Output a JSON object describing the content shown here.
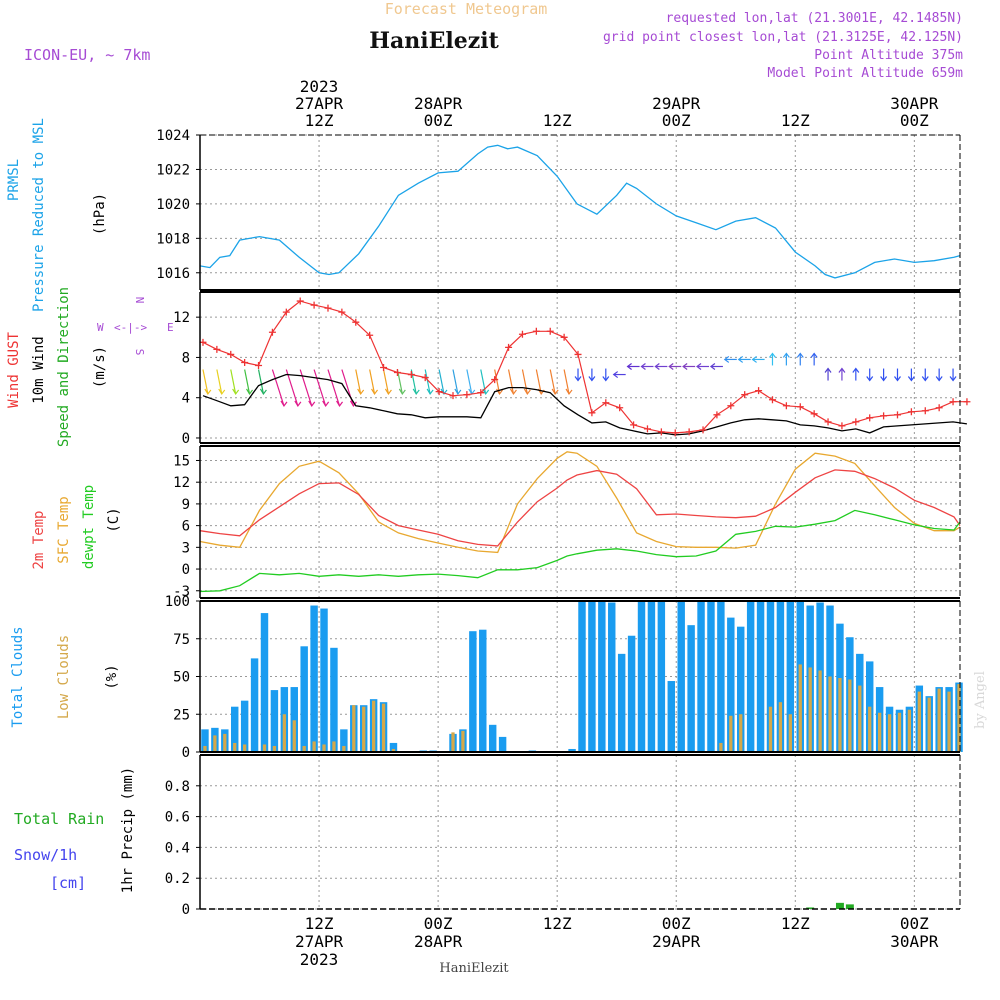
{
  "header": {
    "overlay_title": "Forecast Meteogram",
    "station": "HaniElezit",
    "model": "ICON-EU, ~ 7km",
    "requested": "requested lon,lat (21.3001E, 42.1485N)",
    "grid_point": "grid point closest lon,lat (21.3125E, 42.125N)",
    "point_alt": "Point Altitude 375m",
    "model_alt": "Model Point Altitude 659m",
    "footer_station": "HaniElezit",
    "watermark": "by Angel"
  },
  "time_axis": {
    "top_labels": [
      {
        "h": 12,
        "lines": [
          "2023",
          "27APR",
          "12Z"
        ]
      },
      {
        "h": 24,
        "lines": [
          "28APR",
          "00Z"
        ]
      },
      {
        "h": 36,
        "lines": [
          "12Z"
        ]
      },
      {
        "h": 48,
        "lines": [
          "29APR",
          "00Z"
        ]
      },
      {
        "h": 60,
        "lines": [
          "12Z"
        ]
      },
      {
        "h": 72,
        "lines": [
          "30APR",
          "00Z"
        ]
      }
    ],
    "bottom_labels": [
      {
        "h": 12,
        "lines": [
          "12Z",
          "27APR",
          "2023"
        ]
      },
      {
        "h": 24,
        "lines": [
          "00Z",
          "28APR"
        ]
      },
      {
        "h": 36,
        "lines": [
          "12Z"
        ]
      },
      {
        "h": 48,
        "lines": [
          "00Z",
          "29APR"
        ]
      },
      {
        "h": 60,
        "lines": [
          "12Z"
        ]
      },
      {
        "h": 72,
        "lines": [
          "00Z",
          "30APR"
        ]
      }
    ],
    "range_hours": [
      0,
      76.6
    ]
  },
  "panel_labels": {
    "pressure": {
      "line1": "PRMSL",
      "line2": "Pressure Reduced to MSL",
      "unit": "(hPa)"
    },
    "wind": {
      "gust": "Wind GUST",
      "wind10": "10m Wind",
      "speed": "Speed and Direction",
      "unit": "(m/s)",
      "compass_w": "W",
      "compass_e": "E",
      "compass_n": "N",
      "compass_s": "S"
    },
    "temp": {
      "t2m": "2m Temp",
      "sfc": "SFC Temp",
      "dew": "dewpt Temp",
      "unit": "(C)"
    },
    "clouds": {
      "total": "Total Clouds",
      "low": "Low Clouds",
      "unit": "(%)"
    },
    "precip": {
      "rain": "Total  Rain",
      "snow": "Snow/1h",
      "snow_unit": "[cm]",
      "precip": "1hr Precip (mm)"
    }
  },
  "colors": {
    "pressure": "#1ba3e8",
    "gust": "#ee3333",
    "wind10": "#000000",
    "t2m": "#ee4444",
    "sfc": "#e8a830",
    "dew": "#22cc22",
    "total_cloud": "#1a9cf0",
    "low_cloud": "#d4a84a",
    "precip": "#22aa22",
    "purple": "#a64bd4",
    "blue_label": "#4444ee",
    "green_label": "#22aa22",
    "title_ghost": "#f0c890"
  },
  "chart_data": [
    {
      "type": "line",
      "name": "pressure",
      "ylabel": "Pressure Reduced to MSL (hPa)",
      "ylim": [
        1015,
        1024
      ],
      "yticks": [
        1016,
        1018,
        1020,
        1022,
        1024
      ],
      "x": [
        0,
        1,
        2,
        3,
        4,
        6,
        8,
        10,
        12,
        13,
        14,
        16,
        18,
        20,
        22,
        24,
        26,
        28,
        29,
        30,
        31,
        32,
        34,
        36,
        38,
        40,
        42,
        43,
        44,
        46,
        48,
        50,
        52,
        54,
        56,
        58,
        60,
        62,
        63,
        64,
        66,
        68,
        70,
        72,
        74,
        76,
        76.6
      ],
      "y": [
        1016.4,
        1016.3,
        1016.9,
        1017.0,
        1017.9,
        1018.1,
        1017.9,
        1016.9,
        1016.0,
        1015.9,
        1016.0,
        1017.1,
        1018.7,
        1020.5,
        1021.2,
        1021.8,
        1021.9,
        1022.9,
        1023.3,
        1023.4,
        1023.2,
        1023.3,
        1022.8,
        1021.6,
        1020.0,
        1019.4,
        1020.5,
        1021.2,
        1020.9,
        1020.0,
        1019.3,
        1018.9,
        1018.5,
        1019.0,
        1019.2,
        1018.6,
        1017.2,
        1016.4,
        1015.9,
        1015.7,
        1016.0,
        1016.6,
        1016.8,
        1016.6,
        1016.7,
        1016.9,
        1017.0
      ]
    },
    {
      "type": "line",
      "name": "wind",
      "ylabel": "m/s",
      "ylim": [
        -0.5,
        14.5
      ],
      "yticks": [
        0,
        4,
        8,
        12
      ],
      "gust": [
        9.5,
        8.8,
        8.3,
        7.5,
        7.2,
        10.5,
        12.5,
        13.6,
        13.2,
        12.9,
        12.5,
        11.5,
        10.2,
        7.0,
        6.5,
        6.3,
        6.0,
        4.6,
        4.2,
        4.3,
        4.5,
        5.8,
        9.0,
        10.3,
        10.6,
        10.6,
        10.0,
        8.3,
        2.5,
        3.5,
        3.0,
        1.3,
        0.9,
        0.6,
        0.5,
        0.6,
        0.8,
        2.3,
        3.2,
        4.3,
        4.7,
        3.8,
        3.2,
        3.1,
        2.4,
        1.6,
        1.2,
        1.6,
        2.0,
        2.2,
        2.3,
        2.6,
        2.7,
        3.0,
        3.6,
        3.6
      ],
      "wind10": [
        4.2,
        3.7,
        3.2,
        3.3,
        5.2,
        5.8,
        6.3,
        6.2,
        6.0,
        5.8,
        5.4,
        3.2,
        3.0,
        2.7,
        2.4,
        2.3,
        2.0,
        2.1,
        2.1,
        2.1,
        2.0,
        4.6,
        5.0,
        5.0,
        4.8,
        4.5,
        3.2,
        2.3,
        1.5,
        1.6,
        1.0,
        0.7,
        0.4,
        0.5,
        0.3,
        0.4,
        0.7,
        1.1,
        1.5,
        1.8,
        1.9,
        1.8,
        1.7,
        1.3,
        1.2,
        1.0,
        0.7,
        0.9,
        0.5,
        1.1,
        1.2,
        1.3,
        1.4,
        1.5,
        1.6,
        1.4
      ],
      "series_step_hours": 1.4,
      "arrow_count": 55
    },
    {
      "type": "line",
      "name": "temperature",
      "ylabel": "C",
      "ylim": [
        -4,
        17
      ],
      "yticks": [
        -3,
        0,
        3,
        6,
        9,
        12,
        15
      ],
      "x": [
        0,
        2,
        4,
        6,
        8,
        10,
        12,
        14,
        16,
        18,
        20,
        22,
        24,
        26,
        28,
        30,
        32,
        34,
        36,
        37,
        38,
        40,
        42,
        44,
        46,
        48,
        50,
        52,
        54,
        56,
        58,
        60,
        62,
        64,
        66,
        68,
        70,
        72,
        74,
        76,
        76.6
      ],
      "t2m": [
        5.3,
        4.9,
        4.6,
        6.8,
        8.6,
        10.4,
        11.8,
        11.9,
        10.3,
        7.4,
        6.0,
        5.4,
        4.8,
        3.9,
        3.4,
        3.2,
        6.5,
        9.3,
        11.2,
        12.3,
        13.0,
        13.6,
        13.1,
        11.1,
        7.5,
        7.6,
        7.4,
        7.2,
        7.1,
        7.3,
        8.5,
        10.6,
        12.6,
        13.7,
        13.5,
        12.5,
        11.2,
        9.5,
        8.5,
        7.2,
        6.0
      ],
      "sfc": [
        3.8,
        3.3,
        3.0,
        8.1,
        11.8,
        14.2,
        14.9,
        13.3,
        10.4,
        6.5,
        5.0,
        4.2,
        3.6,
        3.0,
        2.5,
        2.3,
        9.0,
        12.5,
        15.3,
        16.2,
        16.0,
        14.2,
        9.8,
        5.0,
        3.8,
        3.1,
        3.0,
        3.0,
        2.9,
        3.3,
        9.0,
        13.8,
        16.0,
        15.6,
        14.6,
        11.5,
        8.5,
        6.3,
        5.3,
        5.3,
        5.8
      ],
      "dew": [
        -3.1,
        -3.0,
        -2.3,
        -0.6,
        -0.8,
        -0.6,
        -1.0,
        -0.8,
        -1.0,
        -0.8,
        -1.0,
        -0.8,
        -0.7,
        -0.9,
        -1.2,
        -0.1,
        -0.1,
        0.2,
        1.2,
        1.8,
        2.1,
        2.6,
        2.8,
        2.5,
        2.0,
        1.7,
        1.8,
        2.5,
        4.8,
        5.2,
        5.9,
        5.8,
        6.2,
        6.7,
        8.1,
        7.5,
        6.8,
        6.1,
        5.6,
        5.4,
        6.5
      ]
    },
    {
      "type": "bar",
      "name": "clouds",
      "ylabel": "%",
      "ylim": [
        0,
        100
      ],
      "yticks": [
        0,
        25,
        50,
        75,
        100
      ],
      "total": [
        15,
        16,
        15,
        30,
        34,
        62,
        92,
        41,
        43,
        43,
        70,
        97,
        95,
        69,
        15,
        31,
        31,
        35,
        33,
        6,
        0,
        0,
        1,
        1,
        0,
        12,
        15,
        80,
        81,
        18,
        10,
        0,
        0,
        1,
        0,
        0,
        0,
        2,
        100,
        100,
        100,
        99,
        65,
        77,
        100,
        100,
        100,
        47,
        100,
        84,
        100,
        100,
        100,
        89,
        83,
        100,
        100,
        100,
        100,
        100,
        100,
        97,
        99,
        97,
        85,
        76,
        65,
        60,
        43,
        30,
        28,
        30,
        44,
        37,
        43,
        43,
        46
      ],
      "low": [
        4,
        11,
        12,
        6,
        5,
        0,
        5,
        4,
        25,
        21,
        4,
        7,
        5,
        7,
        4,
        31,
        30,
        34,
        32,
        2,
        0,
        0,
        0,
        0,
        0,
        13,
        14,
        0,
        0,
        0,
        0,
        0,
        0,
        0,
        0,
        0,
        0,
        0,
        0,
        0,
        0,
        0,
        0,
        0,
        0,
        0,
        0,
        0,
        0,
        0,
        0,
        0,
        6,
        24,
        25,
        0,
        0,
        30,
        33,
        25,
        58,
        56,
        54,
        50,
        49,
        48,
        44,
        30,
        26,
        25,
        26,
        28,
        40,
        36,
        42,
        40,
        45
      ],
      "start_hour": 0.5,
      "step_hours": 1.0
    },
    {
      "type": "bar",
      "name": "precip",
      "ylabel": "1hr Precip (mm)",
      "ylim": [
        0,
        1.0
      ],
      "yticks": [
        0,
        0.2,
        0.4,
        0.6,
        0.8
      ],
      "bars": [
        {
          "h": 61.5,
          "v": 0.01
        },
        {
          "h": 64.5,
          "v": 0.04
        },
        {
          "h": 65.5,
          "v": 0.03
        }
      ]
    }
  ]
}
